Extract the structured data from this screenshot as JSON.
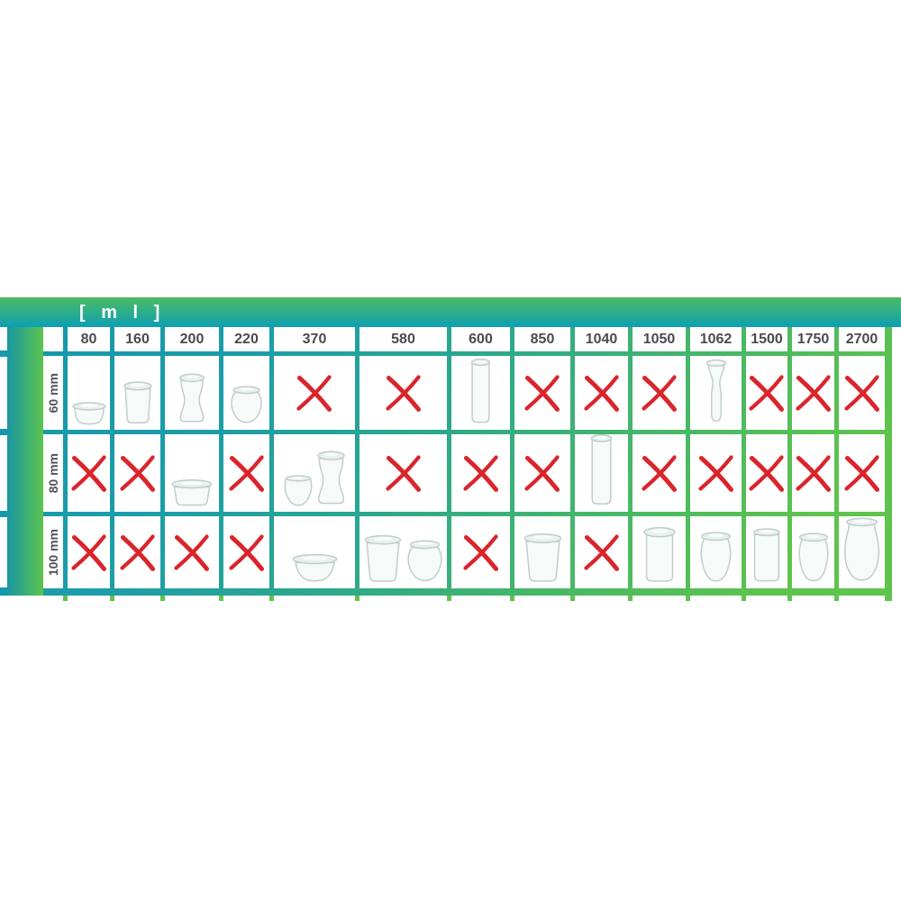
{
  "header_bar": {
    "unit_label": "[ m l ]"
  },
  "matrix": {
    "corner_label": "",
    "volume_columns": [
      "80",
      "160",
      "200",
      "220",
      "370",
      "580",
      "600",
      "850",
      "1040",
      "1050",
      "1062",
      "1500",
      "1750",
      "2700"
    ],
    "diameter_rows": [
      {
        "label": "60 mm",
        "cells": [
          {
            "type": "jars",
            "jars": [
              "mold-jar-small"
            ]
          },
          {
            "type": "jars",
            "jars": [
              "mold-jar"
            ]
          },
          {
            "type": "jars",
            "jars": [
              "hourglass-jar"
            ]
          },
          {
            "type": "jars",
            "jars": [
              "tulip-jar"
            ]
          },
          {
            "type": "cross"
          },
          {
            "type": "cross"
          },
          {
            "type": "jars",
            "jars": [
              "cylinder-jar"
            ]
          },
          {
            "type": "cross"
          },
          {
            "type": "cross"
          },
          {
            "type": "cross"
          },
          {
            "type": "jars",
            "jars": [
              "juice-bottle"
            ]
          },
          {
            "type": "cross"
          },
          {
            "type": "cross"
          },
          {
            "type": "cross"
          }
        ]
      },
      {
        "label": "80 mm",
        "cells": [
          {
            "type": "cross"
          },
          {
            "type": "cross"
          },
          {
            "type": "jars",
            "jars": [
              "low-mold-jar"
            ]
          },
          {
            "type": "cross"
          },
          {
            "type": "jars",
            "jars": [
              "tulip-cup",
              "hourglass-jar"
            ]
          },
          {
            "type": "cross"
          },
          {
            "type": "cross"
          },
          {
            "type": "cross"
          },
          {
            "type": "jars",
            "jars": [
              "cylinder-jar"
            ]
          },
          {
            "type": "cross"
          },
          {
            "type": "cross"
          },
          {
            "type": "cross"
          },
          {
            "type": "cross"
          },
          {
            "type": "cross"
          }
        ]
      },
      {
        "label": "100 mm",
        "cells": [
          {
            "type": "cross"
          },
          {
            "type": "cross"
          },
          {
            "type": "cross"
          },
          {
            "type": "cross"
          },
          {
            "type": "jars",
            "jars": [
              "bowl-jar"
            ]
          },
          {
            "type": "jars",
            "jars": [
              "beaker-jar",
              "tulip-jar"
            ]
          },
          {
            "type": "cross"
          },
          {
            "type": "jars",
            "jars": [
              "beaker-jar"
            ]
          },
          {
            "type": "cross"
          },
          {
            "type": "jars",
            "jars": [
              "rim-cylinder-jar"
            ]
          },
          {
            "type": "jars",
            "jars": [
              "tulip-jar-tall"
            ]
          },
          {
            "type": "jars",
            "jars": [
              "straight-jar"
            ]
          },
          {
            "type": "jars",
            "jars": [
              "tulip-jar-tall"
            ]
          },
          {
            "type": "jars",
            "jars": [
              "bulb-jar"
            ]
          }
        ]
      }
    ]
  },
  "icons": {
    "incompatible": "cross-icon",
    "compatible": "jar-icon"
  },
  "colors": {
    "teal": "#1598ac",
    "green": "#5ec44c",
    "header_gradient_top": "#4cba63",
    "header_gradient_bottom": "#0d9fb6",
    "cross_red": "#d9252b",
    "number_text": "#4a4b4d",
    "glass_stroke": "#c0cecc"
  }
}
